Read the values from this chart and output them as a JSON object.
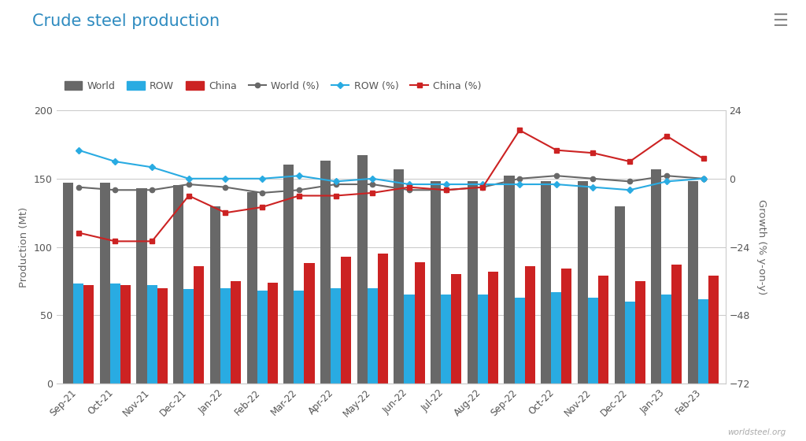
{
  "categories": [
    "Sep-21",
    "Oct-21",
    "Nov-21",
    "Dec-21",
    "Jan-22",
    "Feb-22",
    "Mar-22",
    "Apr-22",
    "May-22",
    "Jun-22",
    "Jul-22",
    "Aug-22",
    "Sep-22",
    "Oct-22",
    "Nov-22",
    "Dec-22",
    "Jan-23",
    "Feb-23"
  ],
  "world_bar": [
    147,
    147,
    143,
    145,
    130,
    140,
    160,
    163,
    167,
    157,
    148,
    148,
    152,
    148,
    148,
    130,
    157,
    148
  ],
  "row_bar": [
    73,
    73,
    72,
    69,
    70,
    68,
    68,
    70,
    70,
    65,
    65,
    65,
    63,
    67,
    63,
    60,
    65,
    62
  ],
  "china_bar": [
    72,
    72,
    70,
    86,
    75,
    74,
    88,
    93,
    95,
    89,
    80,
    82,
    86,
    84,
    79,
    75,
    87,
    79
  ],
  "world_pct": [
    -3,
    -4,
    -4,
    -2,
    -3,
    -5,
    -4,
    -2,
    -2,
    -4,
    -4,
    -3,
    0,
    1,
    0,
    -1,
    1,
    0
  ],
  "row_pct": [
    10,
    6,
    4,
    0,
    0,
    0,
    1,
    -1,
    0,
    -2,
    -2,
    -2,
    -2,
    -2,
    -3,
    -4,
    -1,
    0
  ],
  "china_pct": [
    -19,
    -22,
    -22,
    -6,
    -12,
    -10,
    -6,
    -6,
    -5,
    -3,
    -4,
    -3,
    17,
    10,
    9,
    6,
    15,
    7
  ],
  "title": "Crude steel production",
  "ylabel_left": "Production (Mt)",
  "ylabel_right": "Growth (% y-on-y)",
  "ylim_left": [
    0,
    200
  ],
  "ylim_right": [
    -72,
    24
  ],
  "yticks_left": [
    0,
    50,
    100,
    150,
    200
  ],
  "yticks_right": [
    -72,
    -48,
    -24,
    0,
    24
  ],
  "bg_color": "#ffffff",
  "plot_bg_color": "#ffffff",
  "world_bar_color": "#686868",
  "row_bar_color": "#29ABE2",
  "china_bar_color": "#CC2222",
  "world_pct_color": "#686868",
  "row_pct_color": "#29ABE2",
  "china_pct_color": "#CC2222",
  "grid_color": "#cccccc",
  "title_color": "#2E8BC0",
  "axis_label_color": "#666666",
  "tick_label_color": "#555555",
  "watermark": "worldsteel.org"
}
